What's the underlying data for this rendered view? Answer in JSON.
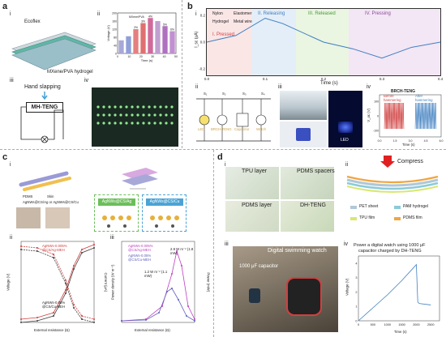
{
  "panel_a": {
    "label": "a",
    "i": {
      "sub": "i",
      "ecoflex": "Ecoflex",
      "hydrogel": "MXene/PVA hydrogel"
    },
    "ii": {
      "sub": "ii",
      "legend": "MXene/PVA"
    },
    "iii": {
      "sub": "iii",
      "text": "Hand slapping",
      "device": "MH-TENG"
    },
    "iv": {
      "sub": "iv"
    }
  },
  "panel_b": {
    "label": "b",
    "i": {
      "sub": "i",
      "labels": [
        "I. Pressed",
        "II. Releasing",
        "III. Released",
        "IV. Pressing"
      ],
      "legend": [
        "Nylon",
        "Elastomer",
        "Hydrogel",
        "Metal wire"
      ],
      "xlabel": "Time (s)",
      "ylabel": "I_sc (µA)",
      "x_ticks": [
        "0.0",
        "0.1",
        "0.2",
        "0.3",
        "0.4"
      ],
      "y_ticks": [
        "-0.2",
        "0.0",
        "0.2"
      ]
    },
    "ii": {
      "sub": "ii",
      "labels": [
        "LED",
        "BRCH-TENG",
        "Capacitor",
        "Watch"
      ],
      "switches": [
        "S₁",
        "S₂",
        "S₃",
        "S₄"
      ]
    },
    "iii": {
      "sub": "iii",
      "led": "LED"
    },
    "iv": {
      "sub": "iv",
      "title": "BRCH-TENG",
      "before": "Before hammering",
      "after": "After hammering",
      "xlabel": "Time (s)",
      "ylabel": "V_oc (V)",
      "x_ticks": [
        "0.0",
        "1.5",
        "3.0",
        "4.5",
        "6.0"
      ],
      "y_ticks": [
        "-100",
        "0",
        "100"
      ]
    }
  },
  "panel_c": {
    "label": "c",
    "i": {
      "sub": "i",
      "legend": [
        "PDMS",
        "Skin",
        "AgNWs@CS/Ag or AgNWs@CS/Cu"
      ],
      "box1": "AgNWs@CS/Ag",
      "box2": "AgNWs@CS/Cu"
    },
    "ii": {
      "sub": "ii",
      "xlabel": "External resistance (Ω)",
      "ylabel_left": "Voltage (V)",
      "ylabel_right": "Current (µA)",
      "series_labels": [
        "AgNWs-0.005% @CS/Ag-MEH",
        "AgNWs-0.05% @CS/Cu-MEH"
      ]
    },
    "iii": {
      "sub": "iii",
      "xlabel": "External resistance (Ω)",
      "ylabel_left": "Power density (W m⁻²)",
      "ylabel_right": "Power (mW)",
      "annotations": [
        "2.9 W m⁻² (1.8 mW)",
        "1.2 W m⁻² (1.1 mW)"
      ],
      "legend": [
        "AgNWs-0.005% @CS/Ag-MEH",
        "AgNWs-0.05% @CS/Cu-MEH"
      ]
    }
  },
  "panel_d": {
    "label": "d",
    "i": {
      "sub": "i",
      "tpu": "TPU layer",
      "pdms_spacers": "PDMS spacers",
      "pdms": "PDMS layer",
      "device": "DH-TENG"
    },
    "ii": {
      "sub": "ii",
      "compress": "Compress",
      "legend": [
        "PET sheet",
        "PAM hydrogel",
        "TPU film",
        "PDMS film"
      ]
    },
    "iii": {
      "sub": "iii",
      "watch": "Digital swimming watch",
      "cap": "1000 μF capacitor"
    },
    "iv": {
      "sub": "iv",
      "title1": "Power a digital watch using 1000 μF",
      "title2": "capacitor charged by DH-TENG",
      "xlabel": "Time (s)",
      "ylabel": "Voltage (V)",
      "x_ticks": [
        "0",
        "500",
        "1000",
        "1500",
        "2000",
        "2500"
      ],
      "y_ticks": [
        "0",
        "1",
        "2",
        "3",
        "4"
      ]
    }
  },
  "chart_data": [
    {
      "type": "bar",
      "panel": "a-ii",
      "categories": [
        "0",
        "5",
        "10",
        "15",
        "20",
        "25",
        "30",
        "40"
      ],
      "values": [
        65,
        85,
        120,
        150,
        175,
        160,
        135,
        110
      ],
      "bar_labels": [
        "",
        "",
        "2%",
        "3%",
        "4%",
        "",
        "5%",
        "6%"
      ],
      "xlabel": "Time (s)",
      "ylabel": "Voltage (V)",
      "x_ticks": [
        "0",
        "10",
        "20",
        "30",
        "40",
        "50"
      ],
      "y_ticks": [
        "0",
        "40",
        "80",
        "120",
        "160",
        "200"
      ],
      "ylim": [
        0,
        200
      ],
      "colors": [
        "#a8a8d8",
        "#8fa0d8",
        "#e58080",
        "#e07070",
        "#d06a9a",
        "#c0a0d0",
        "#b070c0",
        "#c090d0"
      ]
    },
    {
      "type": "line",
      "panel": "b-i",
      "x": [
        0.0,
        0.05,
        0.1,
        0.13,
        0.2,
        0.25,
        0.3,
        0.35,
        0.4
      ],
      "y": [
        0.0,
        0.05,
        0.18,
        0.14,
        0.0,
        -0.05,
        -0.12,
        -0.04,
        0.0
      ]
    },
    {
      "type": "line",
      "panel": "c-ii",
      "series": [
        {
          "name": "AgNWs-0.005% @CS/Ag-MEH",
          "color": "#d04040"
        },
        {
          "name": "AgNWs-0.05% @CS/Cu-MEH",
          "color": "#404040"
        }
      ]
    },
    {
      "type": "line",
      "panel": "c-iii",
      "series": [
        {
          "name": "AgNWs-0.005% @CS/Ag-MEH",
          "color": "#c040c0"
        },
        {
          "name": "AgNWs-0.05% @CS/Cu-MEH",
          "color": "#6060c0"
        }
      ]
    },
    {
      "type": "line",
      "panel": "d-iv",
      "x": [
        0,
        500,
        1000,
        1500,
        2000,
        2050,
        2100,
        2500
      ],
      "y": [
        0,
        0.9,
        1.8,
        2.8,
        3.9,
        1.3,
        1.2,
        1.1
      ]
    }
  ],
  "colors": {
    "accent_blue": "#4aa3d6",
    "green": "#6bbf59",
    "purple": "#b06bc6",
    "red": "#d04040"
  }
}
